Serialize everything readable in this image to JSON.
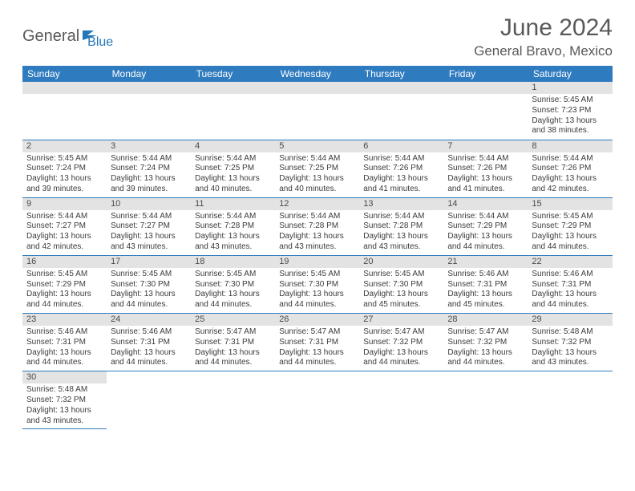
{
  "brand": {
    "part1": "General",
    "part2": "Blue",
    "icon_color": "#2376b8"
  },
  "title": "June 2024",
  "location": "General Bravo, Mexico",
  "colors": {
    "header_bg": "#2f7bbf",
    "header_text": "#ffffff",
    "daynum_bg": "#e3e3e3",
    "cell_border": "#2f7bbf",
    "text": "#3b3b3b",
    "title_text": "#595959"
  },
  "weekdays": [
    "Sunday",
    "Monday",
    "Tuesday",
    "Wednesday",
    "Thursday",
    "Friday",
    "Saturday"
  ],
  "weeks": [
    [
      null,
      null,
      null,
      null,
      null,
      null,
      {
        "n": "1",
        "sr": "5:45 AM",
        "ss": "7:23 PM",
        "dl": "13 hours and 38 minutes."
      }
    ],
    [
      {
        "n": "2",
        "sr": "5:45 AM",
        "ss": "7:24 PM",
        "dl": "13 hours and 39 minutes."
      },
      {
        "n": "3",
        "sr": "5:44 AM",
        "ss": "7:24 PM",
        "dl": "13 hours and 39 minutes."
      },
      {
        "n": "4",
        "sr": "5:44 AM",
        "ss": "7:25 PM",
        "dl": "13 hours and 40 minutes."
      },
      {
        "n": "5",
        "sr": "5:44 AM",
        "ss": "7:25 PM",
        "dl": "13 hours and 40 minutes."
      },
      {
        "n": "6",
        "sr": "5:44 AM",
        "ss": "7:26 PM",
        "dl": "13 hours and 41 minutes."
      },
      {
        "n": "7",
        "sr": "5:44 AM",
        "ss": "7:26 PM",
        "dl": "13 hours and 41 minutes."
      },
      {
        "n": "8",
        "sr": "5:44 AM",
        "ss": "7:26 PM",
        "dl": "13 hours and 42 minutes."
      }
    ],
    [
      {
        "n": "9",
        "sr": "5:44 AM",
        "ss": "7:27 PM",
        "dl": "13 hours and 42 minutes."
      },
      {
        "n": "10",
        "sr": "5:44 AM",
        "ss": "7:27 PM",
        "dl": "13 hours and 43 minutes."
      },
      {
        "n": "11",
        "sr": "5:44 AM",
        "ss": "7:28 PM",
        "dl": "13 hours and 43 minutes."
      },
      {
        "n": "12",
        "sr": "5:44 AM",
        "ss": "7:28 PM",
        "dl": "13 hours and 43 minutes."
      },
      {
        "n": "13",
        "sr": "5:44 AM",
        "ss": "7:28 PM",
        "dl": "13 hours and 43 minutes."
      },
      {
        "n": "14",
        "sr": "5:44 AM",
        "ss": "7:29 PM",
        "dl": "13 hours and 44 minutes."
      },
      {
        "n": "15",
        "sr": "5:45 AM",
        "ss": "7:29 PM",
        "dl": "13 hours and 44 minutes."
      }
    ],
    [
      {
        "n": "16",
        "sr": "5:45 AM",
        "ss": "7:29 PM",
        "dl": "13 hours and 44 minutes."
      },
      {
        "n": "17",
        "sr": "5:45 AM",
        "ss": "7:30 PM",
        "dl": "13 hours and 44 minutes."
      },
      {
        "n": "18",
        "sr": "5:45 AM",
        "ss": "7:30 PM",
        "dl": "13 hours and 44 minutes."
      },
      {
        "n": "19",
        "sr": "5:45 AM",
        "ss": "7:30 PM",
        "dl": "13 hours and 44 minutes."
      },
      {
        "n": "20",
        "sr": "5:45 AM",
        "ss": "7:30 PM",
        "dl": "13 hours and 45 minutes."
      },
      {
        "n": "21",
        "sr": "5:46 AM",
        "ss": "7:31 PM",
        "dl": "13 hours and 45 minutes."
      },
      {
        "n": "22",
        "sr": "5:46 AM",
        "ss": "7:31 PM",
        "dl": "13 hours and 44 minutes."
      }
    ],
    [
      {
        "n": "23",
        "sr": "5:46 AM",
        "ss": "7:31 PM",
        "dl": "13 hours and 44 minutes."
      },
      {
        "n": "24",
        "sr": "5:46 AM",
        "ss": "7:31 PM",
        "dl": "13 hours and 44 minutes."
      },
      {
        "n": "25",
        "sr": "5:47 AM",
        "ss": "7:31 PM",
        "dl": "13 hours and 44 minutes."
      },
      {
        "n": "26",
        "sr": "5:47 AM",
        "ss": "7:31 PM",
        "dl": "13 hours and 44 minutes."
      },
      {
        "n": "27",
        "sr": "5:47 AM",
        "ss": "7:32 PM",
        "dl": "13 hours and 44 minutes."
      },
      {
        "n": "28",
        "sr": "5:47 AM",
        "ss": "7:32 PM",
        "dl": "13 hours and 44 minutes."
      },
      {
        "n": "29",
        "sr": "5:48 AM",
        "ss": "7:32 PM",
        "dl": "13 hours and 43 minutes."
      }
    ],
    [
      {
        "n": "30",
        "sr": "5:48 AM",
        "ss": "7:32 PM",
        "dl": "13 hours and 43 minutes."
      },
      null,
      null,
      null,
      null,
      null,
      null
    ]
  ],
  "labels": {
    "sunrise": "Sunrise:",
    "sunset": "Sunset:",
    "daylight": "Daylight:"
  }
}
